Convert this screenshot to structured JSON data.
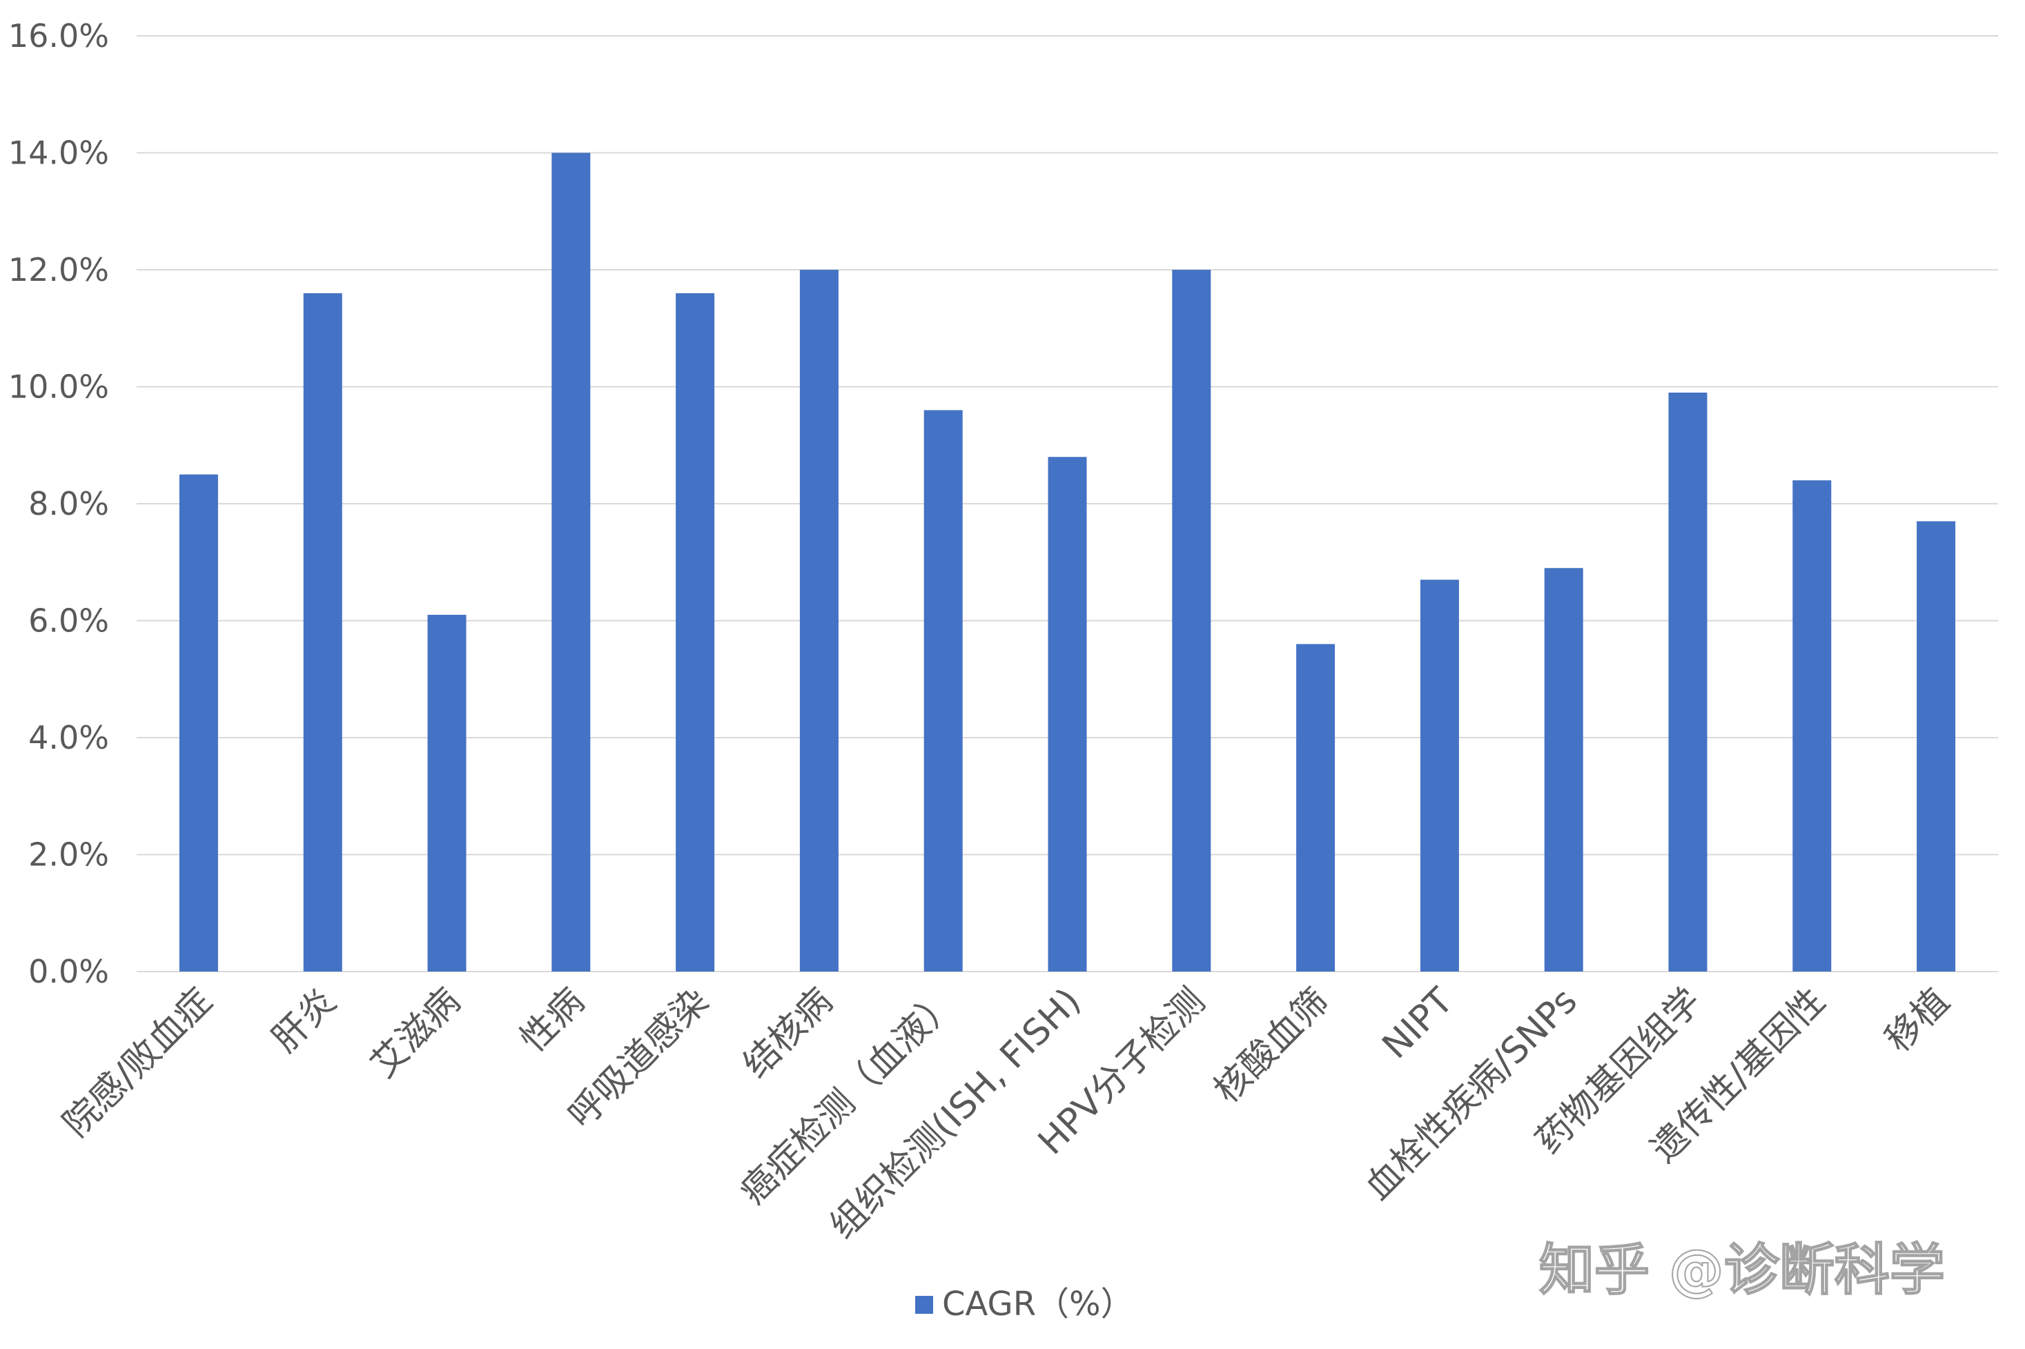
{
  "chart_data": {
    "type": "bar",
    "categories": [
      "院感/败血症",
      "肝炎",
      "艾滋病",
      "性病",
      "呼吸道感染",
      "结核病",
      "癌症检测（血液）",
      "组织检测(ISH, FISH)",
      "HPV分子检测",
      "核酸血筛",
      "NIPT",
      "血栓性疾病/SNPs",
      "药物基因组学",
      "遗传性/基因性",
      "移植"
    ],
    "series": [
      {
        "name": "CAGR（%）",
        "values": [
          8.5,
          11.6,
          6.1,
          14.0,
          11.6,
          12.0,
          9.6,
          8.8,
          12.0,
          5.6,
          6.7,
          6.9,
          9.9,
          8.4,
          7.7
        ]
      }
    ],
    "y_ticks": [
      "0.0%",
      "2.0%",
      "4.0%",
      "6.0%",
      "8.0%",
      "10.0%",
      "12.0%",
      "14.0%",
      "16.0%"
    ],
    "ylim": [
      0,
      16
    ],
    "grid": true,
    "legend_position": "bottom",
    "colors": {
      "bar": "#4472C4",
      "grid": "#D9D9D9",
      "text": "#595959"
    }
  },
  "watermark": "知乎 @诊断科学"
}
